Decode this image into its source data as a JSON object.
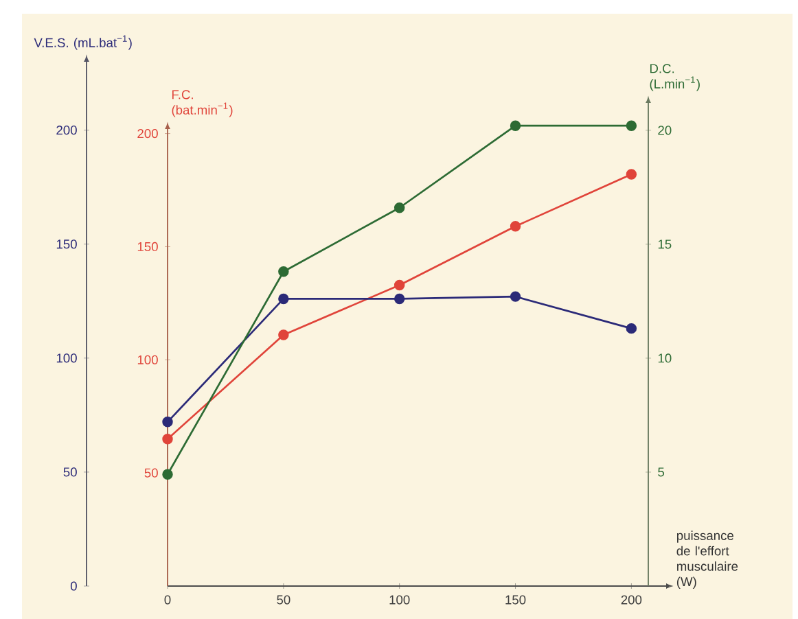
{
  "chart_data": {
    "type": "line",
    "xlabel": "puissance de l'effort musculaire (W)",
    "ylabel": "V.E.S. (mL.bat$^{−1}$)",
    "y2label": "F.C. (bat.min$^{−1}$)",
    "y3label": "D.C. (L.min$^{−1}$)",
    "x": [
      0,
      50,
      100,
      150,
      200
    ],
    "xlim": [
      0,
      215
    ],
    "xticks": [
      0,
      50,
      100,
      150,
      200
    ],
    "ylim": [
      0,
      230
    ],
    "yticks": [
      0,
      50,
      100,
      150,
      200
    ],
    "y2lim": [
      0,
      202
    ],
    "y2ticks": [
      50,
      100,
      150,
      200
    ],
    "y3lim": [
      0,
      21.2
    ],
    "y3ticks": [
      5,
      10,
      15,
      20
    ],
    "marker": "circle",
    "line_style": "solid",
    "series": [
      {
        "color": "#2b2a78",
        "axis": "y",
        "values": [
          72,
          126,
          126,
          127,
          113
        ]
      },
      {
        "color": "#e0443a",
        "axis": "y2",
        "values": [
          65,
          111,
          133,
          159,
          182
        ]
      },
      {
        "color": "#2d6b34",
        "axis": "y3",
        "values": [
          4.9,
          13.8,
          16.6,
          20.2,
          20.2
        ]
      }
    ]
  }
}
